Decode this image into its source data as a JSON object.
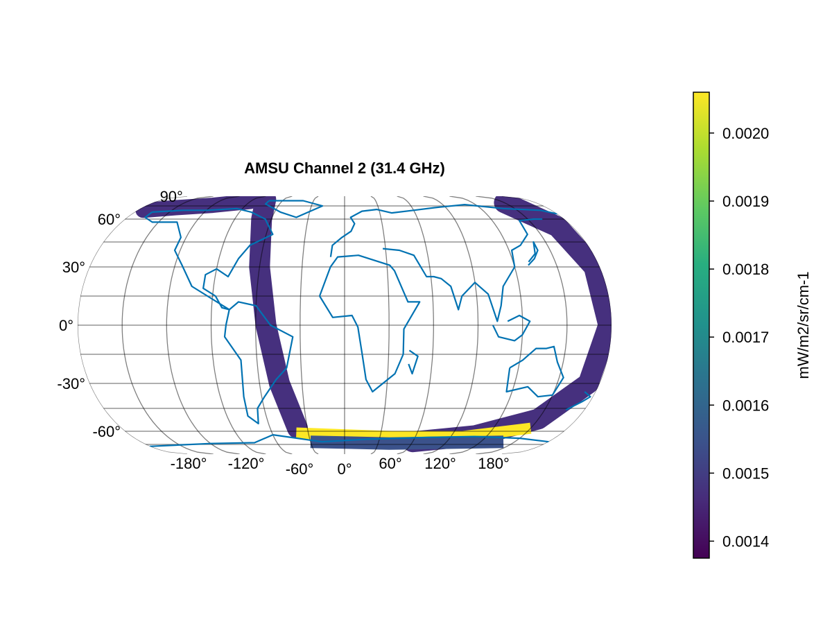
{
  "chart_data": {
    "type": "heatmap",
    "title": "AMSU Channel 2 (31.4 GHz)",
    "projection": "pseudo-cylindrical world map",
    "lat_ticks": [
      "90°",
      "60°",
      "30°",
      "0°",
      "-30°",
      "-60°"
    ],
    "lat_tick_values": [
      90,
      60,
      30,
      0,
      -30,
      -60
    ],
    "lon_ticks": [
      "-180°",
      "-120°",
      "-60°",
      "0°",
      "60°",
      "120°",
      "180°"
    ],
    "lon_tick_values": [
      -180,
      -120,
      -60,
      0,
      60,
      120,
      180
    ],
    "grid": true,
    "coastline_color": "#0072b2",
    "colorbar": {
      "label": "mW/m2/sr/cm-1",
      "colormap": "viridis",
      "range": [
        0.001375,
        0.00206
      ],
      "ticks": [
        "0.0014",
        "0.0015",
        "0.0016",
        "0.0017",
        "0.0018",
        "0.0019",
        "0.0020"
      ],
      "tick_values": [
        0.0014,
        0.0015,
        0.0016,
        0.0017,
        0.0018,
        0.0019,
        0.002
      ],
      "placement": "right"
    }
  }
}
